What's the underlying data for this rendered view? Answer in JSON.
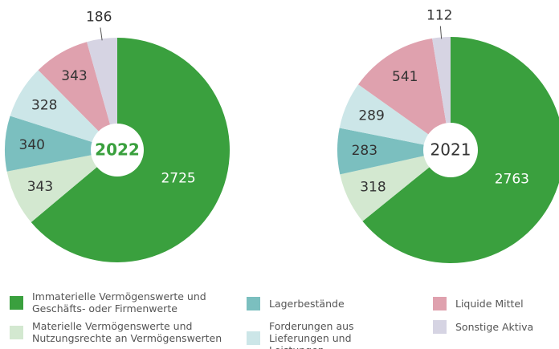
{
  "legend": {
    "labels": [
      "Immaterielle Vermögenswerte und Geschäfts- oder Firmenwerte",
      "Materielle Vermögenswerte und Nutzungsrechte an Vermögenswerten",
      "Lagerbestände",
      "Forderungen aus Lieferungen und Leistungen",
      "Liquide Mittel",
      "Sonstige Aktiva"
    ],
    "colors": [
      "#3aa03e",
      "#d3e8d0",
      "#7bbfbf",
      "#cce6e8",
      "#dfa1ae",
      "#d6d4e3"
    ]
  },
  "chart_data": [
    {
      "type": "pie",
      "title": "2022",
      "values": [
        2725,
        343,
        340,
        328,
        343,
        186
      ]
    },
    {
      "type": "pie",
      "title": "2021",
      "values": [
        2763,
        318,
        283,
        289,
        541,
        112
      ]
    }
  ]
}
